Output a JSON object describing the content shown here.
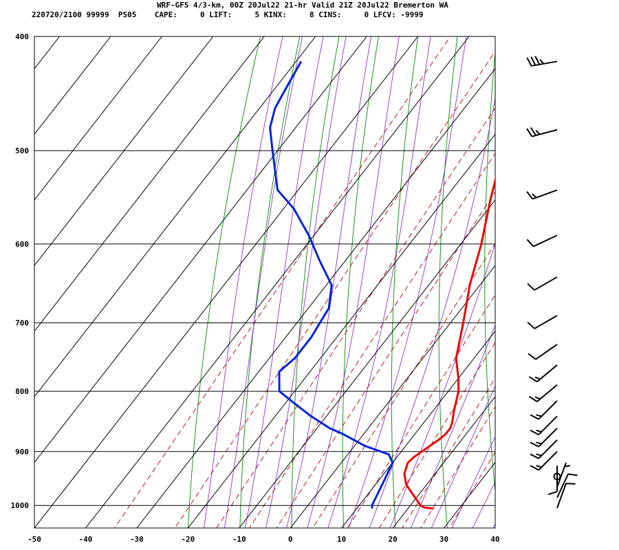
{
  "header": {
    "line1": "WRF-GFS 4/3-km, 00Z 20Jul22 21-hr Valid 21Z 20Jul22 Bremerton WA",
    "line2": "220720/2100 99999  PS05    CAPE:     0 LIFT:     5 KINX:     8 CINS:     0 LFCV: -9999"
  },
  "colors": {
    "temperature": "#ee0000",
    "dewpoint": "#0022dd",
    "isotherm_grid": "#000000",
    "dry_adiabat": "#008800",
    "moist_adiabat": "#8833cc",
    "mixing_ratio": "#aa0000",
    "wind_barb": "#000000"
  },
  "chart_data": {
    "type": "skew-t",
    "xlim": [
      -50,
      40
    ],
    "ylim": [
      1045,
      400
    ],
    "x_ticks": [
      "-50",
      "-40",
      "-30",
      "-20",
      "-10",
      "0",
      "10",
      "20",
      "30",
      "40"
    ],
    "y_ticks": [
      "400",
      "500",
      "600",
      "700",
      "800",
      "900",
      "1000"
    ],
    "series": [
      {
        "key": "temperature",
        "points": [
          [
            1006,
            25
          ],
          [
            1004,
            23
          ],
          [
            1000,
            22
          ],
          [
            980,
            19
          ],
          [
            960,
            16
          ],
          [
            940,
            14
          ],
          [
            920,
            13
          ],
          [
            910,
            13.3
          ],
          [
            900,
            14
          ],
          [
            880,
            15.5
          ],
          [
            870,
            16
          ],
          [
            860,
            16
          ],
          [
            850,
            15.5
          ],
          [
            830,
            14
          ],
          [
            800,
            12
          ],
          [
            780,
            10
          ],
          [
            750,
            6.5
          ],
          [
            700,
            2.5
          ],
          [
            650,
            -2
          ],
          [
            600,
            -6
          ],
          [
            550,
            -11
          ],
          [
            500,
            -16
          ],
          [
            470,
            -20
          ],
          [
            440,
            -25
          ],
          [
            420,
            -28
          ],
          [
            415,
            -28.5
          ]
        ]
      },
      {
        "key": "dewpoint",
        "points": [
          [
            1006,
            13
          ],
          [
            1000,
            12.5
          ],
          [
            950,
            11
          ],
          [
            920,
            10
          ],
          [
            905,
            8
          ],
          [
            890,
            2
          ],
          [
            870,
            -4
          ],
          [
            860,
            -7.5
          ],
          [
            840,
            -13
          ],
          [
            820,
            -18
          ],
          [
            800,
            -23
          ],
          [
            780,
            -25
          ],
          [
            770,
            -26
          ],
          [
            750,
            -25
          ],
          [
            720,
            -25
          ],
          [
            700,
            -25.5
          ],
          [
            680,
            -26
          ],
          [
            650,
            -29
          ],
          [
            620,
            -35
          ],
          [
            590,
            -41
          ],
          [
            560,
            -48
          ],
          [
            540,
            -54
          ],
          [
            500,
            -61
          ],
          [
            478,
            -65
          ],
          [
            460,
            -67
          ],
          [
            440,
            -68
          ],
          [
            420,
            -69
          ]
        ]
      }
    ],
    "winds": [
      {
        "p": 420,
        "dir": 260,
        "kt": 35
      },
      {
        "p": 480,
        "dir": 255,
        "kt": 25
      },
      {
        "p": 540,
        "dir": 250,
        "kt": 15
      },
      {
        "p": 590,
        "dir": 245,
        "kt": 10
      },
      {
        "p": 640,
        "dir": 240,
        "kt": 10
      },
      {
        "p": 690,
        "dir": 240,
        "kt": 10
      },
      {
        "p": 730,
        "dir": 235,
        "kt": 10
      },
      {
        "p": 760,
        "dir": 230,
        "kt": 15
      },
      {
        "p": 790,
        "dir": 230,
        "kt": 15
      },
      {
        "p": 815,
        "dir": 225,
        "kt": 15
      },
      {
        "p": 840,
        "dir": 225,
        "kt": 15
      },
      {
        "p": 860,
        "dir": 225,
        "kt": 15
      },
      {
        "p": 880,
        "dir": 225,
        "kt": 15
      },
      {
        "p": 900,
        "dir": 225,
        "kt": 15
      },
      {
        "p": 925,
        "dir": 180,
        "kt": 10
      },
      {
        "p": 945,
        "dir": 0,
        "kt": 0
      },
      {
        "p": 965,
        "dir": 20,
        "kt": 5
      },
      {
        "p": 985,
        "dir": 25,
        "kt": 10
      },
      {
        "p": 1005,
        "dir": 20,
        "kt": 10
      }
    ]
  }
}
